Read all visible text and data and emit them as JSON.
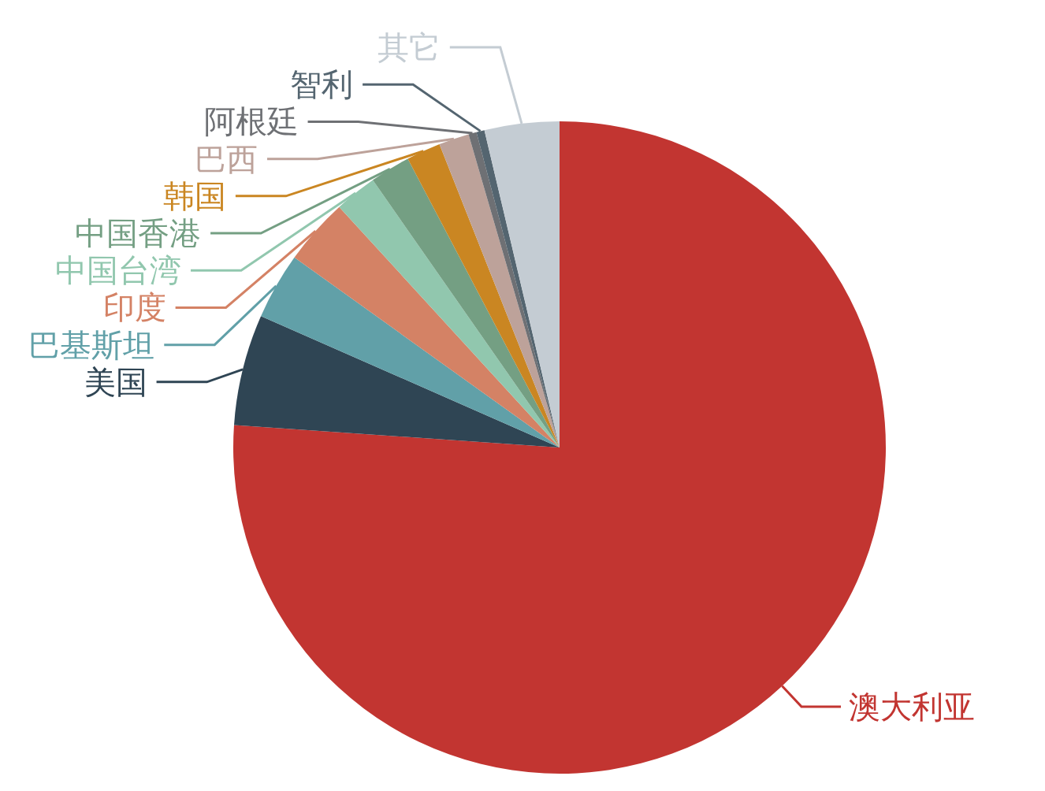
{
  "chart_data": {
    "type": "pie",
    "categories": [
      "澳大利亚",
      "美国",
      "巴基斯坦",
      "印度",
      "中国台湾",
      "中国香港",
      "韩国",
      "巴西",
      "阿根廷",
      "智利",
      "其它"
    ],
    "values": [
      76.1,
      5.5,
      3.3,
      3.3,
      2.1,
      2.0,
      1.7,
      1.5,
      0.4,
      0.4,
      3.7
    ],
    "colors": [
      "#c23531",
      "#2f4554",
      "#61a0a8",
      "#d48265",
      "#91c7ae",
      "#749f83",
      "#ca8622",
      "#bda29a",
      "#6e7074",
      "#546570",
      "#c4ccd3"
    ]
  }
}
